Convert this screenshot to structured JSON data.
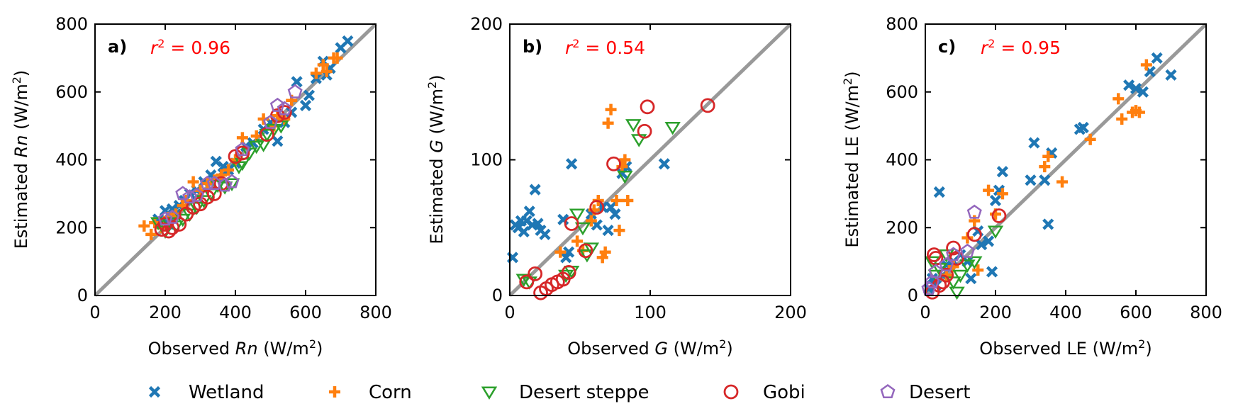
{
  "legend": [
    {
      "key": "wetland",
      "label": "Wetland"
    },
    {
      "key": "corn",
      "label": "Corn"
    },
    {
      "key": "steppe",
      "label": "Desert steppe"
    },
    {
      "key": "gobi",
      "label": "Gobi"
    },
    {
      "key": "desert",
      "label": "Desert"
    }
  ],
  "colors": {
    "wetland": "#1f77b4",
    "corn": "#ff7f0e",
    "steppe": "#2ca02c",
    "gobi": "#d62728",
    "desert": "#9467bd",
    "one_to_one": "#999999",
    "r2": "#ff0000"
  },
  "chart_data": [
    {
      "type": "scatter",
      "panel_label": "a)",
      "r2_symbol": "r",
      "r2_value": "0.96",
      "xlabel": {
        "pre": "Observed ",
        "var": "Rn",
        "unit": "W/m",
        "sup": "2"
      },
      "ylabel": {
        "pre": "Estimated ",
        "var": "Rn",
        "unit": "W/m",
        "sup": "2"
      },
      "xlim": [
        0,
        800
      ],
      "ylim": [
        0,
        800
      ],
      "xticks": [
        0,
        200,
        400,
        600,
        800
      ],
      "yticks": [
        0,
        200,
        400,
        600,
        800
      ],
      "series": {
        "wetland": [
          [
            180,
            225
          ],
          [
            200,
            250
          ],
          [
            210,
            210
          ],
          [
            220,
            255
          ],
          [
            230,
            240
          ],
          [
            240,
            265
          ],
          [
            255,
            280
          ],
          [
            270,
            300
          ],
          [
            290,
            310
          ],
          [
            310,
            335
          ],
          [
            330,
            355
          ],
          [
            345,
            395
          ],
          [
            365,
            380
          ],
          [
            380,
            370
          ],
          [
            400,
            390
          ],
          [
            430,
            440
          ],
          [
            450,
            450
          ],
          [
            480,
            490
          ],
          [
            500,
            510
          ],
          [
            520,
            455
          ],
          [
            540,
            510
          ],
          [
            560,
            540
          ],
          [
            575,
            630
          ],
          [
            600,
            560
          ],
          [
            610,
            590
          ],
          [
            630,
            640
          ],
          [
            650,
            690
          ],
          [
            660,
            650
          ],
          [
            670,
            670
          ],
          [
            700,
            730
          ],
          [
            720,
            750
          ]
        ],
        "corn": [
          [
            140,
            205
          ],
          [
            160,
            180
          ],
          [
            170,
            215
          ],
          [
            190,
            200
          ],
          [
            210,
            230
          ],
          [
            230,
            240
          ],
          [
            250,
            265
          ],
          [
            260,
            280
          ],
          [
            280,
            335
          ],
          [
            300,
            310
          ],
          [
            320,
            330
          ],
          [
            340,
            340
          ],
          [
            360,
            355
          ],
          [
            380,
            370
          ],
          [
            400,
            400
          ],
          [
            420,
            465
          ],
          [
            460,
            470
          ],
          [
            480,
            520
          ],
          [
            510,
            500
          ],
          [
            520,
            530
          ],
          [
            540,
            520
          ],
          [
            560,
            575
          ],
          [
            630,
            655
          ],
          [
            650,
            680
          ],
          [
            660,
            660
          ],
          [
            680,
            700
          ],
          [
            690,
            700
          ]
        ],
        "steppe": [
          [
            180,
            215
          ],
          [
            200,
            190
          ],
          [
            210,
            215
          ],
          [
            230,
            205
          ],
          [
            250,
            225
          ],
          [
            270,
            240
          ],
          [
            290,
            260
          ],
          [
            310,
            280
          ],
          [
            330,
            300
          ],
          [
            350,
            325
          ],
          [
            370,
            320
          ],
          [
            390,
            330
          ],
          [
            410,
            380
          ],
          [
            420,
            390
          ],
          [
            440,
            420
          ],
          [
            460,
            440
          ],
          [
            480,
            445
          ],
          [
            490,
            475
          ],
          [
            510,
            490
          ],
          [
            530,
            500
          ]
        ],
        "gobi": [
          [
            190,
            195
          ],
          [
            200,
            210
          ],
          [
            210,
            190
          ],
          [
            220,
            200
          ],
          [
            240,
            210
          ],
          [
            260,
            240
          ],
          [
            280,
            260
          ],
          [
            300,
            270
          ],
          [
            320,
            290
          ],
          [
            340,
            300
          ],
          [
            360,
            330
          ],
          [
            400,
            410
          ],
          [
            420,
            420
          ],
          [
            490,
            475
          ],
          [
            520,
            530
          ],
          [
            540,
            540
          ]
        ],
        "desert": [
          [
            200,
            225
          ],
          [
            220,
            230
          ],
          [
            250,
            300
          ],
          [
            270,
            290
          ],
          [
            290,
            295
          ],
          [
            320,
            330
          ],
          [
            340,
            330
          ],
          [
            370,
            325
          ],
          [
            390,
            335
          ],
          [
            420,
            430
          ],
          [
            500,
            510
          ],
          [
            520,
            560
          ],
          [
            540,
            550
          ],
          [
            570,
            600
          ]
        ]
      }
    },
    {
      "type": "scatter",
      "panel_label": "b)",
      "r2_symbol": "r",
      "r2_value": "0.54",
      "xlabel": {
        "pre": "Observed ",
        "var": "G",
        "unit": "W/m",
        "sup": "2"
      },
      "ylabel": {
        "pre": "Estimated ",
        "var": "G",
        "unit": "W/m",
        "sup": "2"
      },
      "xlim": [
        0,
        200
      ],
      "ylim": [
        0,
        200
      ],
      "xticks": [
        0,
        100,
        200
      ],
      "yticks": [
        0,
        100,
        200
      ],
      "series": {
        "wetland": [
          [
            2,
            28
          ],
          [
            4,
            52
          ],
          [
            6,
            50
          ],
          [
            8,
            55
          ],
          [
            10,
            47
          ],
          [
            12,
            55
          ],
          [
            14,
            62
          ],
          [
            16,
            52
          ],
          [
            18,
            78
          ],
          [
            20,
            53
          ],
          [
            22,
            48
          ],
          [
            25,
            45
          ],
          [
            38,
            56
          ],
          [
            40,
            28
          ],
          [
            42,
            32
          ],
          [
            44,
            97
          ],
          [
            58,
            60
          ],
          [
            62,
            52
          ],
          [
            66,
            65
          ],
          [
            70,
            48
          ],
          [
            72,
            65
          ],
          [
            75,
            60
          ],
          [
            80,
            90
          ],
          [
            83,
            95
          ],
          [
            110,
            97
          ]
        ],
        "corn": [
          [
            36,
            32
          ],
          [
            48,
            40
          ],
          [
            52,
            33
          ],
          [
            58,
            55
          ],
          [
            60,
            63
          ],
          [
            63,
            70
          ],
          [
            66,
            28
          ],
          [
            68,
            32
          ],
          [
            70,
            127
          ],
          [
            72,
            137
          ],
          [
            76,
            70
          ],
          [
            78,
            48
          ],
          [
            80,
            95
          ],
          [
            82,
            100
          ],
          [
            84,
            70
          ]
        ],
        "steppe": [
          [
            10,
            12
          ],
          [
            14,
            10
          ],
          [
            40,
            15
          ],
          [
            44,
            18
          ],
          [
            48,
            60
          ],
          [
            52,
            50
          ],
          [
            55,
            30
          ],
          [
            58,
            35
          ],
          [
            82,
            88
          ],
          [
            88,
            126
          ],
          [
            92,
            115
          ],
          [
            116,
            124
          ]
        ],
        "gobi": [
          [
            12,
            10
          ],
          [
            18,
            16
          ],
          [
            22,
            2
          ],
          [
            26,
            5
          ],
          [
            30,
            8
          ],
          [
            34,
            10
          ],
          [
            38,
            12
          ],
          [
            42,
            17
          ],
          [
            44,
            53
          ],
          [
            54,
            33
          ],
          [
            62,
            65
          ],
          [
            74,
            97
          ],
          [
            96,
            121
          ],
          [
            98,
            139
          ],
          [
            141,
            140
          ]
        ],
        "desert": []
      }
    },
    {
      "type": "scatter",
      "panel_label": "c)",
      "r2_symbol": "r",
      "r2_value": "0.95",
      "xlabel": {
        "pre": "Observed LE ",
        "var": "",
        "unit": "W/m",
        "sup": "2"
      },
      "ylabel": {
        "pre": "Estimated LE ",
        "var": "",
        "unit": "W/m",
        "sup": "2"
      },
      "xlim": [
        0,
        800
      ],
      "ylim": [
        0,
        800
      ],
      "xticks": [
        0,
        200,
        400,
        600,
        800
      ],
      "yticks": [
        0,
        200,
        400,
        600,
        800
      ],
      "series": {
        "wetland": [
          [
            10,
            20
          ],
          [
            20,
            50
          ],
          [
            30,
            30
          ],
          [
            40,
            305
          ],
          [
            50,
            60
          ],
          [
            60,
            90
          ],
          [
            80,
            100
          ],
          [
            100,
            120
          ],
          [
            120,
            100
          ],
          [
            130,
            50
          ],
          [
            150,
            190
          ],
          [
            160,
            150
          ],
          [
            180,
            160
          ],
          [
            190,
            70
          ],
          [
            200,
            280
          ],
          [
            210,
            310
          ],
          [
            220,
            365
          ],
          [
            300,
            340
          ],
          [
            310,
            450
          ],
          [
            340,
            340
          ],
          [
            350,
            210
          ],
          [
            360,
            420
          ],
          [
            440,
            490
          ],
          [
            450,
            495
          ],
          [
            580,
            620
          ],
          [
            600,
            610
          ],
          [
            620,
            600
          ],
          [
            640,
            660
          ],
          [
            660,
            700
          ],
          [
            700,
            650
          ]
        ],
        "corn": [
          [
            60,
            60
          ],
          [
            80,
            85
          ],
          [
            120,
            170
          ],
          [
            140,
            220
          ],
          [
            150,
            75
          ],
          [
            180,
            310
          ],
          [
            200,
            240
          ],
          [
            220,
            300
          ],
          [
            340,
            380
          ],
          [
            350,
            410
          ],
          [
            390,
            335
          ],
          [
            470,
            460
          ],
          [
            550,
            580
          ],
          [
            560,
            520
          ],
          [
            590,
            540
          ],
          [
            600,
            545
          ],
          [
            610,
            540
          ],
          [
            630,
            680
          ]
        ],
        "steppe": [
          [
            20,
            100
          ],
          [
            40,
            80
          ],
          [
            60,
            120
          ],
          [
            80,
            40
          ],
          [
            90,
            10
          ],
          [
            100,
            60
          ],
          [
            120,
            90
          ],
          [
            140,
            100
          ],
          [
            200,
            190
          ],
          [
            30,
            60
          ]
        ],
        "gobi": [
          [
            20,
            10
          ],
          [
            25,
            120
          ],
          [
            30,
            110
          ],
          [
            40,
            30
          ],
          [
            50,
            40
          ],
          [
            60,
            60
          ],
          [
            80,
            140
          ],
          [
            90,
            110
          ],
          [
            140,
            180
          ],
          [
            210,
            235
          ]
        ],
        "desert": [
          [
            10,
            20
          ],
          [
            20,
            40
          ],
          [
            30,
            70
          ],
          [
            60,
            90
          ],
          [
            80,
            120
          ],
          [
            120,
            130
          ],
          [
            140,
            245
          ]
        ]
      }
    }
  ]
}
